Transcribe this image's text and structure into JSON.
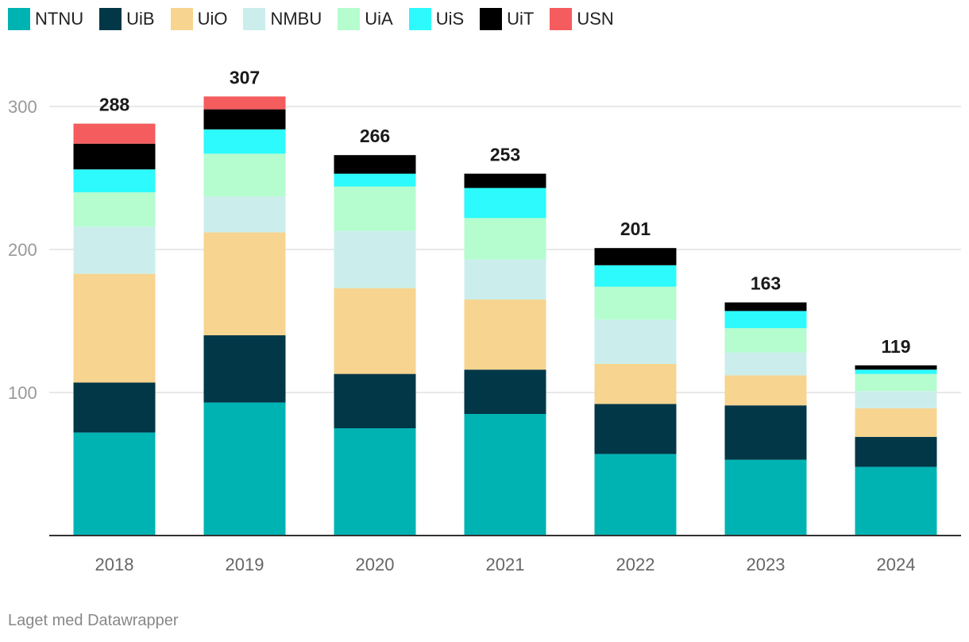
{
  "chart_data": {
    "type": "bar",
    "stacked": true,
    "categories": [
      "2018",
      "2019",
      "2020",
      "2021",
      "2022",
      "2023",
      "2024"
    ],
    "series": [
      {
        "name": "NTNU",
        "color": "#00b3b3",
        "values": [
          72,
          93,
          75,
          85,
          57,
          53,
          48
        ]
      },
      {
        "name": "UiB",
        "color": "#013747",
        "values": [
          35,
          47,
          38,
          31,
          35,
          38,
          21
        ]
      },
      {
        "name": "UiO",
        "color": "#f7d48f",
        "values": [
          76,
          72,
          60,
          49,
          28,
          21,
          20
        ]
      },
      {
        "name": "NMBU",
        "color": "#cbeeec",
        "values": [
          33,
          25,
          40,
          28,
          31,
          16,
          12
        ]
      },
      {
        "name": "UiA",
        "color": "#b5fccf",
        "values": [
          24,
          30,
          31,
          29,
          23,
          17,
          12
        ]
      },
      {
        "name": "UiS",
        "color": "#2cfafd",
        "values": [
          16,
          17,
          9,
          21,
          15,
          12,
          3
        ]
      },
      {
        "name": "UiT",
        "color": "#000000",
        "values": [
          18,
          14,
          13,
          10,
          12,
          6,
          3
        ]
      },
      {
        "name": "USN",
        "color": "#f45c5e",
        "values": [
          14,
          9,
          0,
          0,
          0,
          0,
          0
        ]
      }
    ],
    "totals": [
      "288",
      "307",
      "266",
      "253",
      "201",
      "163",
      "119"
    ],
    "y_ticks": [
      "100",
      "200",
      "300"
    ],
    "ylim": [
      0,
      320
    ],
    "gridlines": true,
    "legend_position": "top-left"
  },
  "footer": "Laget med Datawrapper"
}
